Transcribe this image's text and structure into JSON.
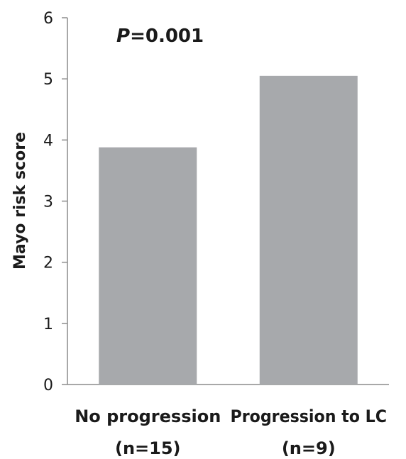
{
  "chart_data": {
    "type": "bar",
    "title": "",
    "xlabel": "",
    "ylabel": "Mayo risk score",
    "ylim": [
      0,
      6
    ],
    "yticks": [
      "0",
      "1",
      "2",
      "3",
      "4",
      "5",
      "6"
    ],
    "grid": false,
    "legend": "none",
    "categories": [
      {
        "name": "No progression",
        "sub": "(n=15)"
      },
      {
        "name": "Progression to LC",
        "sub": "(n=9)"
      }
    ],
    "values": [
      3.88,
      5.05
    ],
    "annotation": {
      "italic": "P",
      "rest": "=0.001"
    },
    "colors": {
      "bar": "#a7a9ac",
      "axis": "#8c8c8c",
      "text": "#1a1a1a"
    }
  }
}
